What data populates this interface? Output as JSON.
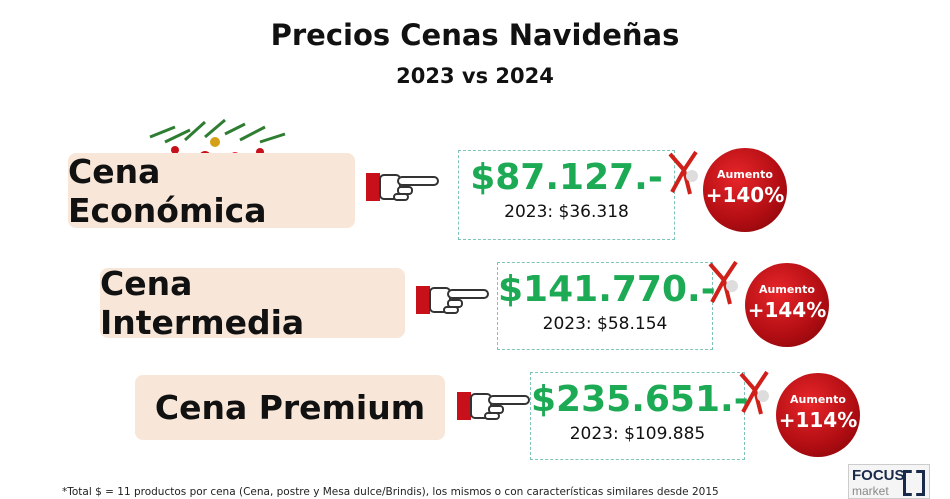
{
  "title": "Precios Cenas Navideñas",
  "subtitle": "2023 vs 2024",
  "rows": [
    {
      "label": "Cena Económica",
      "price": "$87.127.-",
      "previous": "2023: $36.318",
      "badge_label": "Aumento",
      "increase": "+140%"
    },
    {
      "label": "Cena Intermedia",
      "price": "$141.770.-",
      "previous": "2023: $58.154",
      "badge_label": "Aumento",
      "increase": "+144%"
    },
    {
      "label": "Cena Premium",
      "price": "$235.651.-",
      "previous": "2023: $109.885",
      "badge_label": "Aumento",
      "increase": "+114%"
    }
  ],
  "footnote": "*Total $ = 11 productos por cena (Cena, postre y Mesa dulce/Brindis), los mismos o con características similares desde 2015",
  "logo": {
    "line1": "FOCUS",
    "line2": "market"
  },
  "colors": {
    "price": "#1daa55",
    "ornament": "#c8101a",
    "label_bg": "#f8e6d8"
  }
}
